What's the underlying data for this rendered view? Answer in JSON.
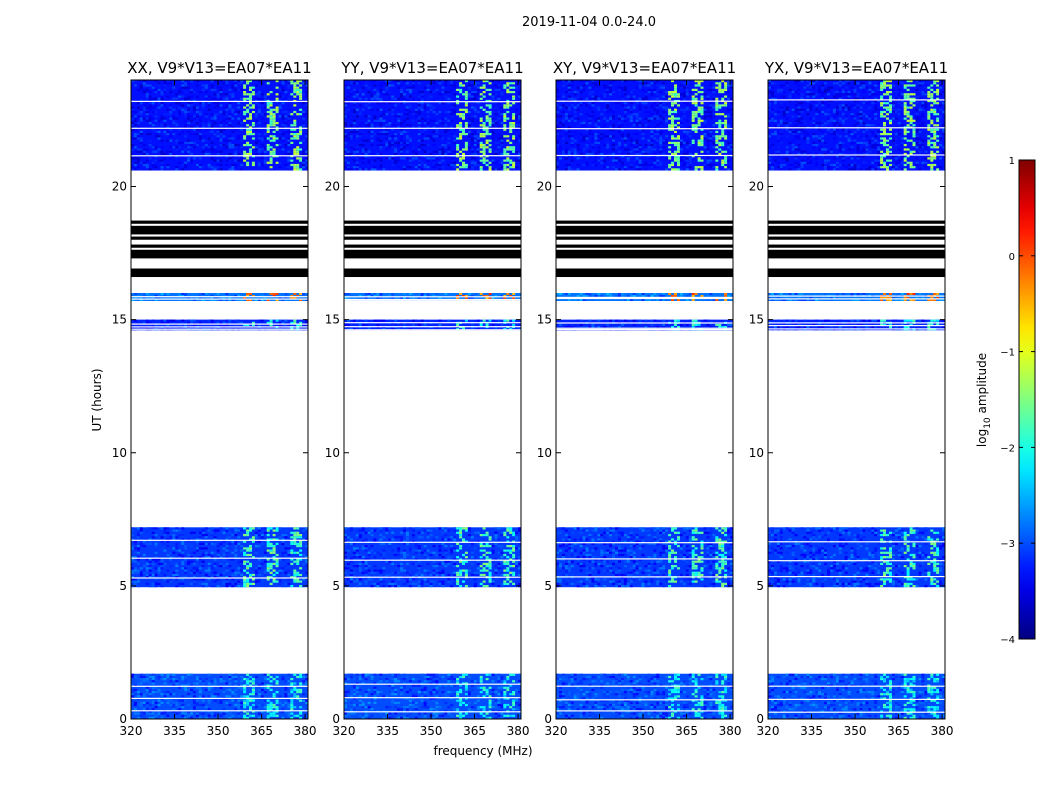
{
  "figure": {
    "suptitle": "2019-11-04 0.0-24.0",
    "xlabel": "frequency (MHz)",
    "ylabel": "UT (hours)"
  },
  "chart_data": {
    "type": "heatmap",
    "title": "2019-11-04 0.0-24.0",
    "xlabel": "frequency (MHz)",
    "ylabel": "UT (hours)",
    "xlim": [
      320,
      381
    ],
    "ylim": [
      0,
      24
    ],
    "xticks": [
      320,
      335,
      350,
      365,
      380
    ],
    "yticks": [
      0,
      5,
      10,
      15,
      20
    ],
    "xtick_labels": [
      "320",
      "335",
      "350",
      "365",
      "380"
    ],
    "ytick_labels": [
      "0",
      "5",
      "10",
      "15",
      "20"
    ],
    "colormap": "jet",
    "colorbar": {
      "label": "log10 amplitude",
      "label_prefix": "log",
      "label_sub": "10",
      "label_suffix": " amplitude",
      "range": [
        -4,
        1
      ],
      "ticks": [
        -4,
        -3,
        -2,
        -1,
        0,
        1
      ],
      "tick_labels": [
        "−4",
        "−3",
        "−2",
        "−1",
        "0",
        "1"
      ]
    },
    "panels": [
      {
        "title": "XX, V9*V13=EA07*EA11",
        "polarization": "XX"
      },
      {
        "title": "YY, V9*V13=EA07*EA11",
        "polarization": "YY"
      },
      {
        "title": "XY, V9*V13=EA07*EA11",
        "polarization": "XY"
      },
      {
        "title": "YX, V9*V13=EA07*EA11",
        "polarization": "YX"
      }
    ],
    "data_blocks_ut_hours": [
      {
        "start": 0.0,
        "end": 1.7,
        "level": -3.0,
        "rfi_level": -2.1
      },
      {
        "start": 4.95,
        "end": 7.2,
        "level": -3.1,
        "rfi_level": -1.8
      },
      {
        "start": 14.6,
        "end": 15.0,
        "level": -3.2,
        "rfi_level": -2.0
      },
      {
        "start": 15.7,
        "end": 16.0,
        "level": -2.8,
        "rfi_level": -0.2
      },
      {
        "start": 20.6,
        "end": 24.0,
        "level": -3.3,
        "rfi_level": -1.5
      }
    ],
    "flagged_stripes_ut_hours": [
      16.6,
      16.8,
      17.3,
      17.5,
      17.7,
      18.0,
      18.2,
      18.4,
      18.6
    ]
  }
}
